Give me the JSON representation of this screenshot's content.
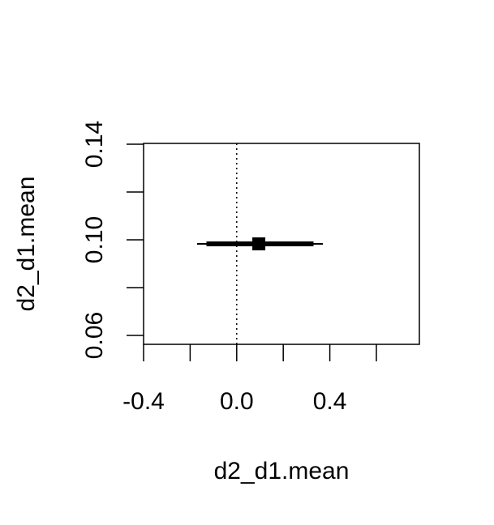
{
  "chart_data": {
    "type": "interval",
    "xlabel": "d2_d1.mean",
    "ylabel": "d2_d1.mean",
    "xlim": [
      -0.4,
      0.8
    ],
    "ylim": [
      0.055,
      0.14
    ],
    "x_ticks": [
      -0.4,
      -0.2,
      0.0,
      0.2,
      0.4,
      0.6,
      0.8
    ],
    "x_tick_labels": [
      "-0.4",
      "",
      "0.0",
      "",
      "0.4",
      "",
      ""
    ],
    "y_ticks": [
      0.06,
      0.08,
      0.1,
      0.12,
      0.14
    ],
    "y_tick_labels": [
      "0.06",
      "",
      "0.10",
      "",
      "0.14"
    ],
    "reference_line_x": 0.0,
    "interval": {
      "y": 0.098,
      "point_estimate": 0.095,
      "inner": [
        -0.13,
        0.33
      ],
      "outer": [
        -0.17,
        0.37
      ]
    },
    "colors": {
      "line": "#000000",
      "background": "#ffffff"
    }
  }
}
